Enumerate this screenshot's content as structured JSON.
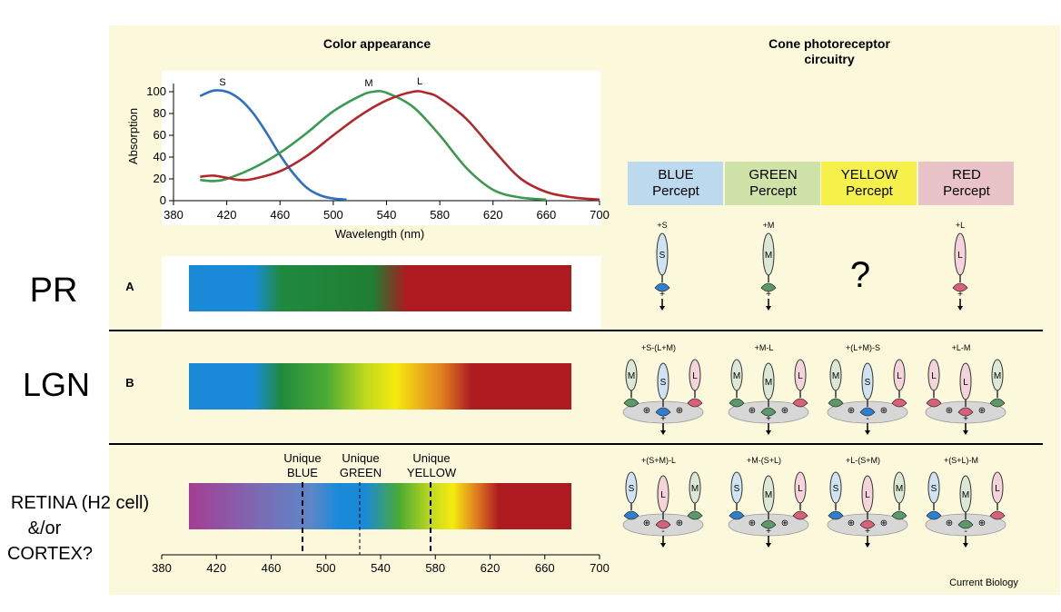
{
  "titles": {
    "color_appearance": "Color appearance",
    "cone_line1": "Cone photoreceptor",
    "cone_line2": "circuitry"
  },
  "side_labels": {
    "pr": "PR",
    "lgn": "LGN",
    "retina_line1": "RETINA (H2 cell)",
    "retina_line2": "&/or",
    "retina_line3": "CORTEX?"
  },
  "row_letters": {
    "a": "A",
    "b": "B"
  },
  "chart_data": {
    "type": "line",
    "ylabel": "Absorption",
    "xlabel": "Wavelength (nm)",
    "xlim": [
      380,
      700
    ],
    "ylim": [
      0,
      100
    ],
    "x_ticks": [
      380,
      420,
      460,
      500,
      540,
      580,
      620,
      660,
      700
    ],
    "y_ticks": [
      0,
      20,
      40,
      60,
      80,
      100
    ],
    "series": [
      {
        "name": "S",
        "color": "#2f6fbf",
        "x": [
          400,
          410,
          420,
          430,
          440,
          450,
          460,
          470,
          480,
          490,
          500,
          510
        ],
        "y": [
          96,
          101,
          100,
          93,
          80,
          62,
          42,
          25,
          12,
          5,
          2,
          1
        ]
      },
      {
        "name": "M",
        "color": "#3a9a4e",
        "x": [
          400,
          410,
          420,
          440,
          460,
          480,
          500,
          520,
          530,
          540,
          560,
          580,
          600,
          620,
          640,
          660
        ],
        "y": [
          19,
          18,
          20,
          30,
          44,
          62,
          82,
          96,
          100,
          99,
          86,
          60,
          30,
          10,
          3,
          1
        ]
      },
      {
        "name": "L",
        "color": "#b3272b",
        "x": [
          400,
          410,
          420,
          430,
          440,
          460,
          480,
          500,
          520,
          540,
          560,
          570,
          580,
          600,
          620,
          640,
          660,
          680,
          700
        ],
        "y": [
          22,
          23,
          21,
          19,
          20,
          27,
          41,
          60,
          78,
          92,
          100,
          99,
          94,
          75,
          47,
          21,
          8,
          3,
          1
        ]
      }
    ]
  },
  "bottom_axis": {
    "ticks": [
      380,
      420,
      460,
      500,
      540,
      580,
      620,
      660,
      700
    ]
  },
  "unique_labels": [
    {
      "top": "Unique",
      "bottom": "BLUE",
      "wavelength": 480
    },
    {
      "top": "Unique",
      "bottom": "GREEN",
      "wavelength": 524
    },
    {
      "top": "Unique",
      "bottom": "YELLOW",
      "wavelength": 576
    }
  ],
  "percepts": [
    {
      "line1": "BLUE",
      "line2": "Percept",
      "color": "#bcd9ee"
    },
    {
      "line1": "GREEN",
      "line2": "Percept",
      "color": "#cfe2a8"
    },
    {
      "line1": "YELLOW",
      "line2": "Percept",
      "color": "#f6f04a"
    },
    {
      "line1": "RED",
      "line2": "Percept",
      "color": "#eac3c8"
    }
  ],
  "pr_labels": [
    "+S",
    "+M",
    "+L"
  ],
  "question_mark": "?",
  "lgn_labels": [
    "+S-(L+M)",
    "+M-L",
    "+(L+M)-S",
    "+L-M"
  ],
  "cortex_labels": [
    "+(S+M)-L",
    "+M-(S+L)",
    "+L-(S+M)",
    "+(S+L)-M"
  ],
  "cone_letters": {
    "s": "S",
    "m": "M",
    "l": "L"
  },
  "signs": {
    "plus": "+",
    "minus": "-",
    "circle_plus": "⊕"
  },
  "credit": "Current Biology",
  "colors": {
    "panel_bg": "#fbf8dc",
    "s_cone": "#2f7fd0",
    "m_cone": "#5a9a6a",
    "l_cone": "#d9607a"
  }
}
